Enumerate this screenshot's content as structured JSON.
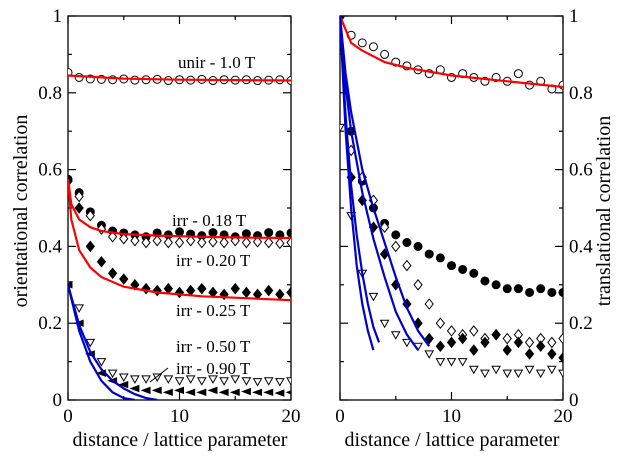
{
  "chart_data": [
    {
      "type": "scatter",
      "ylabel": "orientational correlation",
      "xlabel": "distance / lattice parameter",
      "xlim": [
        0,
        20
      ],
      "ylim": [
        0,
        1
      ],
      "xticks": [
        "0",
        "10",
        "20"
      ],
      "yticks": [
        "0",
        "0.2",
        "0.4",
        "0.6",
        "0.8",
        "1"
      ],
      "annotations": [
        "unir - 1.0 T",
        "irr - 0.18 T",
        "irr - 0.20 T",
        "irr - 0.25 T",
        "irr - 0.50 T",
        "irr - 0.90 T"
      ],
      "series": [
        {
          "label": "unir - 1.0 T",
          "marker": "open-circle",
          "color": "#000000",
          "x": [
            0,
            1,
            2,
            3,
            4,
            5,
            6,
            7,
            8,
            9,
            10,
            11,
            12,
            13,
            14,
            15,
            16,
            17,
            18,
            19,
            20
          ],
          "y": [
            0.853,
            0.84,
            0.836,
            0.835,
            0.834,
            0.836,
            0.833,
            0.834,
            0.835,
            0.832,
            0.834,
            0.833,
            0.835,
            0.832,
            0.834,
            0.833,
            0.834,
            0.832,
            0.833,
            0.834,
            0.832
          ],
          "fit": {
            "color": "#ff0000",
            "x": [
              0,
              5,
              10,
              15,
              20
            ],
            "y": [
              0.845,
              0.837,
              0.834,
              0.833,
              0.832
            ]
          }
        },
        {
          "label": "irr - 0.18 T",
          "marker": "filled-circle",
          "color": "#000000",
          "x": [
            0,
            1,
            2,
            3,
            4,
            5,
            6,
            7,
            8,
            9,
            10,
            11,
            12,
            13,
            14,
            15,
            16,
            17,
            18,
            19,
            20
          ],
          "y": [
            0.575,
            0.54,
            0.49,
            0.455,
            0.44,
            0.435,
            0.43,
            0.425,
            0.435,
            0.43,
            0.438,
            0.432,
            0.428,
            0.436,
            0.43,
            0.425,
            0.433,
            0.428,
            0.436,
            0.43,
            0.435
          ],
          "fit": {
            "color": "#ff0000",
            "x": [
              0,
              0.3,
              1,
              2,
              3,
              5,
              8,
              12,
              16,
              20
            ],
            "y": [
              0.575,
              0.51,
              0.47,
              0.45,
              0.44,
              0.432,
              0.428,
              0.425,
              0.423,
              0.422
            ]
          }
        },
        {
          "label": "irr - 0.20 T",
          "marker": "open-diamond",
          "color": "#000000",
          "x": [
            0,
            1,
            2,
            3,
            4,
            5,
            6,
            7,
            8,
            9,
            10,
            11,
            12,
            13,
            14,
            15,
            16,
            17,
            18,
            19,
            20
          ],
          "y": [
            0.57,
            0.53,
            0.48,
            0.445,
            0.425,
            0.42,
            0.415,
            0.41,
            0.415,
            0.41,
            0.41,
            0.415,
            0.41,
            0.412,
            0.41,
            0.415,
            0.41,
            0.412,
            0.41,
            0.408,
            0.41
          ]
        },
        {
          "label": "irr - 0.25 T",
          "marker": "filled-diamond",
          "color": "#000000",
          "x": [
            0,
            1,
            2,
            3,
            4,
            5,
            6,
            7,
            8,
            9,
            10,
            11,
            12,
            13,
            14,
            15,
            16,
            17,
            18,
            19,
            20
          ],
          "y": [
            0.57,
            0.5,
            0.4,
            0.36,
            0.33,
            0.315,
            0.3,
            0.29,
            0.285,
            0.29,
            0.28,
            0.285,
            0.29,
            0.28,
            0.275,
            0.29,
            0.28,
            0.275,
            0.285,
            0.275,
            0.28
          ],
          "fit": {
            "color": "#ff0000",
            "x": [
              0,
              0.3,
              1,
              2,
              3,
              5,
              8,
              12,
              16,
              20
            ],
            "y": [
              0.575,
              0.47,
              0.39,
              0.345,
              0.32,
              0.295,
              0.28,
              0.27,
              0.265,
              0.26
            ]
          }
        },
        {
          "label": "irr - 0.50 T",
          "marker": "open-triangle-down",
          "color": "#000000",
          "x": [
            0,
            1,
            2,
            3,
            4,
            5,
            6,
            7,
            8,
            9,
            10,
            11,
            12,
            13,
            14,
            15,
            16,
            17,
            18,
            19,
            20
          ],
          "y": [
            0.3,
            0.24,
            0.15,
            0.1,
            0.07,
            0.06,
            0.055,
            0.055,
            0.06,
            0.055,
            0.05,
            0.055,
            0.05,
            0.055,
            0.05,
            0.055,
            0.05,
            0.048,
            0.05,
            0.048,
            0.05
          ],
          "fit": {
            "color": "#0000cc",
            "x": [
              0,
              1,
              2,
              3,
              4,
              5,
              6,
              7,
              8
            ],
            "y": [
              0.3,
              0.195,
              0.125,
              0.08,
              0.05,
              0.03,
              0.015,
              0.005,
              0.0
            ]
          }
        },
        {
          "label": "irr - 0.90 T",
          "marker": "filled-triangle-left",
          "color": "#000000",
          "x": [
            0,
            1,
            2,
            3,
            4,
            5,
            6,
            7,
            8,
            9,
            10,
            11,
            12,
            13,
            14,
            15,
            16,
            17,
            18,
            19,
            20
          ],
          "y": [
            0.3,
            0.2,
            0.12,
            0.07,
            0.05,
            0.04,
            0.03,
            0.025,
            0.025,
            0.02,
            0.025,
            0.02,
            0.02,
            0.025,
            0.02,
            0.02,
            0.022,
            0.02,
            0.02,
            0.018,
            0.02
          ],
          "fit": {
            "color": "#0000cc",
            "x": [
              0,
              1,
              2,
              3,
              4,
              5,
              6
            ],
            "y": [
              0.3,
              0.18,
              0.1,
              0.05,
              0.02,
              0.005,
              0.0
            ]
          }
        }
      ]
    },
    {
      "type": "scatter",
      "ylabel": "translational correlation",
      "xlabel": "distance / lattice parameter",
      "xlim": [
        0,
        20
      ],
      "ylim": [
        0,
        1
      ],
      "xticks": [
        "0",
        "10",
        "20"
      ],
      "yticks": [
        "0",
        "0.2",
        "0.4",
        "0.6",
        "0.8",
        "1"
      ],
      "series": [
        {
          "label": "unir - 1.0 T",
          "marker": "open-circle",
          "color": "#000000",
          "x": [
            0,
            1,
            2,
            3,
            4,
            5,
            6,
            7,
            8,
            9,
            10,
            11,
            12,
            13,
            14,
            15,
            16,
            17,
            18,
            19,
            20
          ],
          "y": [
            1.0,
            0.95,
            0.93,
            0.92,
            0.9,
            0.88,
            0.87,
            0.86,
            0.85,
            0.86,
            0.84,
            0.85,
            0.84,
            0.83,
            0.84,
            0.83,
            0.85,
            0.82,
            0.83,
            0.81,
            0.82
          ],
          "fit": {
            "color": "#ff0000",
            "x": [
              0,
              1,
              2,
              4,
              6,
              10,
              15,
              20
            ],
            "y": [
              1.0,
              0.93,
              0.91,
              0.88,
              0.865,
              0.845,
              0.83,
              0.815
            ]
          }
        },
        {
          "label": "irr - 0.18 T",
          "marker": "filled-circle",
          "color": "#000000",
          "x": [
            0,
            1,
            2,
            3,
            4,
            5,
            6,
            7,
            8,
            9,
            10,
            11,
            12,
            13,
            14,
            15,
            16,
            17,
            18,
            19,
            20
          ],
          "y": [
            1.0,
            0.7,
            0.57,
            0.5,
            0.46,
            0.43,
            0.41,
            0.4,
            0.38,
            0.37,
            0.35,
            0.34,
            0.33,
            0.31,
            0.3,
            0.29,
            0.29,
            0.28,
            0.29,
            0.28,
            0.28
          ]
        },
        {
          "label": "irr - 0.20 T",
          "marker": "open-diamond",
          "color": "#000000",
          "x": [
            0,
            1,
            2,
            3,
            4,
            5,
            6,
            7,
            8,
            9,
            10,
            11,
            12,
            13,
            14,
            15,
            16,
            17,
            18,
            19,
            20
          ],
          "y": [
            1.0,
            0.65,
            0.58,
            0.52,
            0.45,
            0.4,
            0.35,
            0.3,
            0.25,
            0.2,
            0.18,
            0.17,
            0.18,
            0.16,
            0.17,
            0.16,
            0.17,
            0.15,
            0.16,
            0.15,
            0.16
          ],
          "fit": {
            "color": "#0000cc",
            "x": [
              0,
              0.5,
              1,
              2,
              3,
              4,
              5,
              6,
              7,
              8
            ],
            "y": [
              1.0,
              0.85,
              0.75,
              0.6,
              0.5,
              0.41,
              0.32,
              0.24,
              0.18,
              0.14
            ]
          }
        },
        {
          "label": "irr - 0.25 T",
          "marker": "filled-diamond",
          "color": "#000000",
          "x": [
            0,
            1,
            2,
            3,
            4,
            5,
            6,
            7,
            8,
            9,
            10,
            11,
            12,
            13,
            14,
            15,
            16,
            17,
            18,
            19,
            20
          ],
          "y": [
            1.0,
            0.58,
            0.52,
            0.45,
            0.38,
            0.3,
            0.25,
            0.2,
            0.16,
            0.14,
            0.15,
            0.16,
            0.13,
            0.15,
            0.17,
            0.13,
            0.15,
            0.12,
            0.14,
            0.12,
            0.11
          ],
          "fit": {
            "color": "#0000cc",
            "x": [
              0,
              0.5,
              1,
              2,
              3,
              4,
              5,
              6,
              7
            ],
            "y": [
              1.0,
              0.82,
              0.7,
              0.54,
              0.42,
              0.32,
              0.23,
              0.17,
              0.13
            ]
          }
        },
        {
          "label": "irr - 0.50 T",
          "marker": "open-triangle-down",
          "color": "#000000",
          "x": [
            0,
            1,
            2,
            3,
            4,
            5,
            6,
            7,
            8,
            9,
            10,
            11,
            12,
            13,
            14,
            15,
            16,
            17,
            18,
            19,
            20
          ],
          "y": [
            0.71,
            0.48,
            0.33,
            0.27,
            0.2,
            0.17,
            0.15,
            0.14,
            0.12,
            0.1,
            0.1,
            0.1,
            0.08,
            0.07,
            0.08,
            0.07,
            0.07,
            0.08,
            0.07,
            0.08,
            0.07
          ],
          "fit": {
            "color": "#0000cc",
            "x": [
              0,
              0.5,
              1,
              1.5,
              2,
              2.5,
              3
            ],
            "y": [
              1.0,
              0.7,
              0.5,
              0.35,
              0.25,
              0.18,
              0.13
            ]
          }
        },
        {
          "label": "irr - 0.90 T",
          "marker": "filled-triangle-left",
          "color": "#000000",
          "fit": {
            "color": "#0000cc",
            "x": [
              0,
              0.5,
              1,
              1.5,
              2,
              2.5,
              3,
              3.5
            ],
            "y": [
              1.0,
              0.74,
              0.56,
              0.43,
              0.33,
              0.25,
              0.19,
              0.15
            ]
          }
        }
      ]
    }
  ]
}
